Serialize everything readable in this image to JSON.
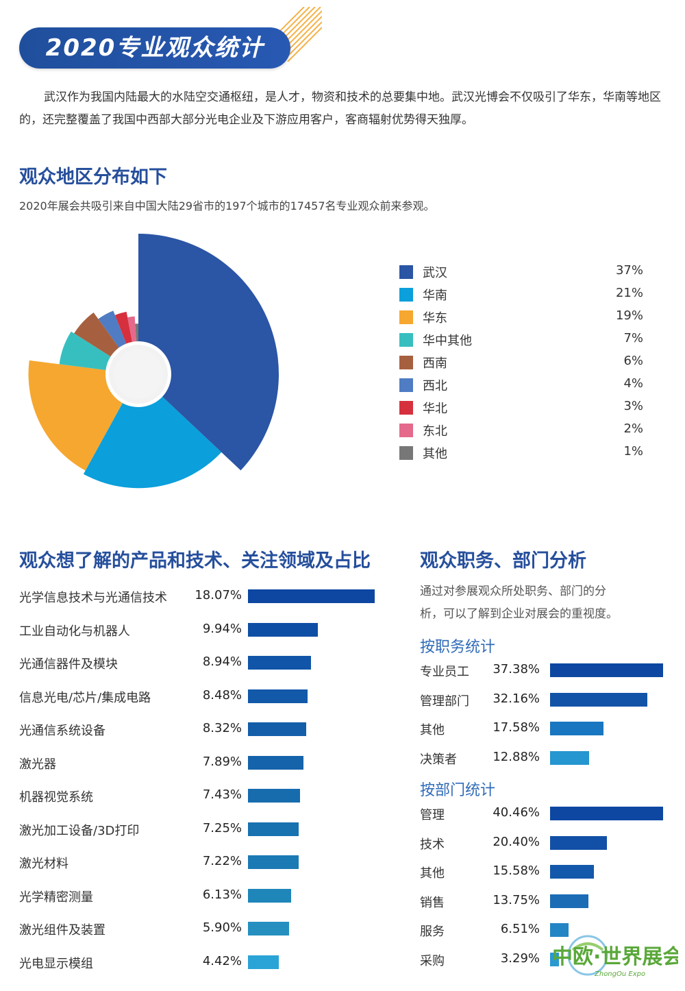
{
  "header": {
    "title": "2020专业观众统计"
  },
  "intro": "武汉作为我国内陆最大的水陆空交通枢纽，是人才，物资和技术的总要集中地。武汉光博会不仅吸引了华东，华南等地区的，还完整覆盖了我国中西部大部分光电企业及下游应用客户，客商辐射优势得天独厚。",
  "region": {
    "heading": "观众地区分布如下",
    "subtitle": "2020年展会共吸引来自中国大陆29省市的197个城市的17457名专业观众前来参观。"
  },
  "products_heading": "观众想了解的产品和技术、关注领域及占比",
  "roles": {
    "heading": "观众职务、部门分析",
    "description_line1": "通过对参展观众所处职务、部门的分",
    "description_line2": "析，可以了解到企业对展会的重视度。",
    "by_position_heading": "按职务统计",
    "by_department_heading": "按部门统计"
  },
  "watermark": {
    "text": "中欧·世界展会",
    "subtext": "ZhongOu Expo"
  },
  "chart_data": [
    {
      "type": "pie",
      "title": "",
      "categories": [
        "武汉",
        "华南",
        "华东",
        "华中其他",
        "西南",
        "西北",
        "华北",
        "东北",
        "其他"
      ],
      "values": [
        37,
        21,
        19,
        7,
        6,
        4,
        3,
        2,
        1
      ],
      "labels": [
        "37%",
        "21%",
        "19%",
        "7%",
        "6%",
        "4%",
        "3%",
        "2%",
        "1%"
      ],
      "colors": [
        "#2b55a5",
        "#0b9fdb",
        "#f6a72f",
        "#37bfc0",
        "#a7603f",
        "#4f7cc3",
        "#d6303e",
        "#e5698b",
        "#777777"
      ],
      "legend_position": "right"
    },
    {
      "type": "bar",
      "orientation": "horizontal",
      "title": "观众想了解的产品和技术、关注领域及占比",
      "categories": [
        "光学信息技术与光通信技术",
        "工业自动化与机器人",
        "光通信器件及模块",
        "信息光电/芯片/集成电路",
        "光通信系统设备",
        "激光器",
        "机器视觉系统",
        "激光加工设备/3D打印",
        "激光材料",
        "光学精密测量",
        "激光组件及装置",
        "光电显示模组"
      ],
      "values": [
        18.07,
        9.94,
        8.94,
        8.48,
        8.32,
        7.89,
        7.43,
        7.25,
        7.22,
        6.13,
        5.9,
        4.42
      ],
      "labels": [
        "18.07%",
        "9.94%",
        "8.94%",
        "8.48%",
        "8.32%",
        "7.89%",
        "7.43%",
        "7.25%",
        "7.22%",
        "6.13%",
        "5.90%",
        "4.42%"
      ],
      "colors": [
        "#0d47a1",
        "#0f4ea5",
        "#1055a8",
        "#1259a9",
        "#145ea9",
        "#1563aa",
        "#176cae",
        "#1872b0",
        "#1b7ab4",
        "#1f86ba",
        "#2590c0",
        "#2aa4d6"
      ]
    },
    {
      "type": "bar",
      "orientation": "horizontal",
      "title": "按职务统计",
      "categories": [
        "专业员工",
        "管理部门",
        "其他",
        "决策者"
      ],
      "values": [
        37.38,
        32.16,
        17.58,
        12.88
      ],
      "labels": [
        "37.38%",
        "32.16%",
        "17.58%",
        "12.88%"
      ],
      "colors": [
        "#0d47a1",
        "#1253a7",
        "#1976c0",
        "#2596cf"
      ]
    },
    {
      "type": "bar",
      "orientation": "horizontal",
      "title": "按部门统计",
      "categories": [
        "管理",
        "技术",
        "其他",
        "销售",
        "服务",
        "采购"
      ],
      "values": [
        40.46,
        20.4,
        15.58,
        13.75,
        6.51,
        3.29
      ],
      "labels": [
        "40.46%",
        "20.40%",
        "15.58%",
        "13.75%",
        "6.51%",
        "3.29%"
      ],
      "colors": [
        "#0d47a1",
        "#1150a6",
        "#1458ab",
        "#1b6cb5",
        "#2485c4",
        "#2a99d0"
      ]
    }
  ]
}
